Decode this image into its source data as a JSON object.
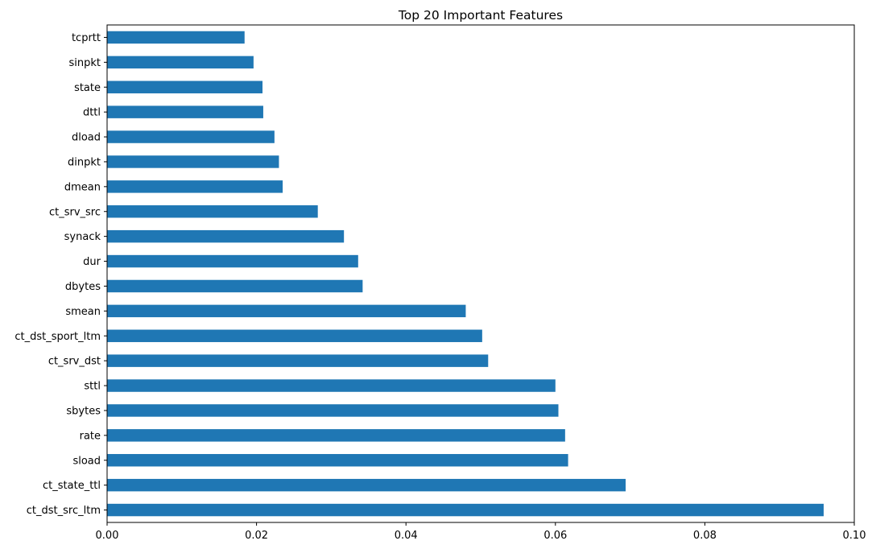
{
  "chart_data": {
    "type": "bar",
    "orientation": "horizontal",
    "title": "Top 20 Important Features",
    "xlabel": "",
    "ylabel": "",
    "xlim": [
      0,
      0.1
    ],
    "x_ticks": [
      "0.00",
      "0.02",
      "0.04",
      "0.06",
      "0.08",
      "0.10"
    ],
    "grid": false,
    "color": "#1f77b4",
    "categories": [
      "ct_dst_src_ltm",
      "ct_state_ttl",
      "sload",
      "rate",
      "sbytes",
      "sttl",
      "ct_srv_dst",
      "ct_dst_sport_ltm",
      "smean",
      "dbytes",
      "dur",
      "synack",
      "ct_srv_src",
      "dmean",
      "dinpkt",
      "dload",
      "dttl",
      "state",
      "sinpkt",
      "tcprtt"
    ],
    "values": [
      0.0959,
      0.0694,
      0.0617,
      0.0613,
      0.0604,
      0.06,
      0.051,
      0.0502,
      0.048,
      0.0342,
      0.0336,
      0.0317,
      0.0282,
      0.0235,
      0.023,
      0.0224,
      0.0209,
      0.0208,
      0.0196,
      0.0184
    ]
  }
}
